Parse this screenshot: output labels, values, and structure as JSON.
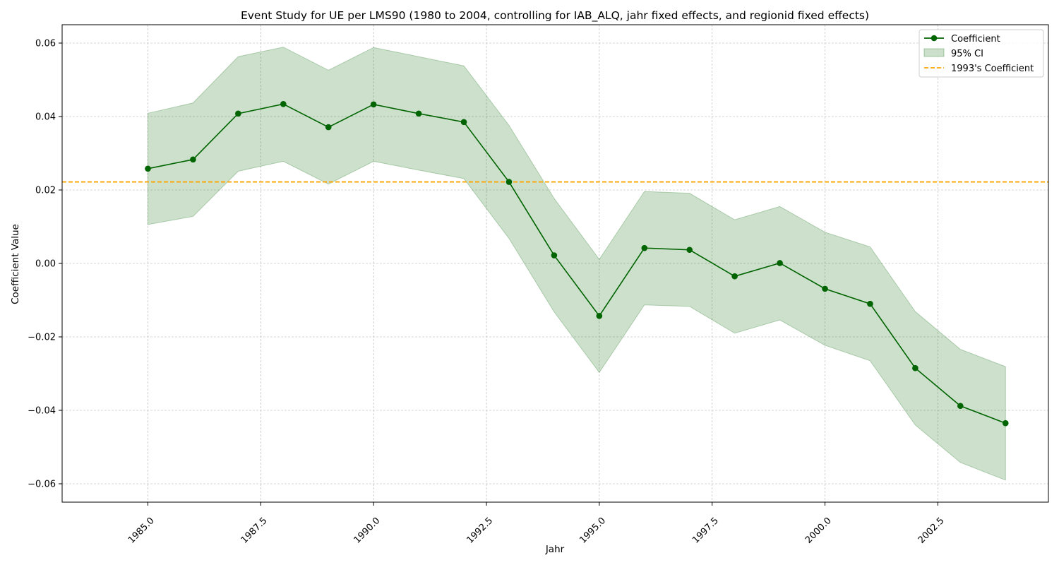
{
  "chart_data": {
    "type": "line",
    "title": "Event Study for UE per LMS90 (1980 to 2004, controlling for IAB_ALQ, jahr fixed effects, and regionid fixed effects)",
    "xlabel": "Jahr",
    "ylabel": "Coefficient Value",
    "xlim": [
      1983.1,
      2004.95
    ],
    "ylim": [
      -0.065,
      0.065
    ],
    "xticks": [
      1985.0,
      1987.5,
      1990.0,
      1992.5,
      1995.0,
      1997.5,
      2000.0,
      2002.5
    ],
    "xtick_labels": [
      "1985.0",
      "1987.5",
      "1990.0",
      "1992.5",
      "1995.0",
      "1997.5",
      "2000.0",
      "2002.5"
    ],
    "yticks": [
      -0.06,
      -0.04,
      -0.02,
      0.0,
      0.02,
      0.04,
      0.06
    ],
    "ytick_labels": [
      "−0.06",
      "−0.04",
      "−0.02",
      "0.00",
      "0.02",
      "0.04",
      "0.06"
    ],
    "grid": true,
    "legend_position": "top-right",
    "x": [
      1985,
      1986,
      1987,
      1988,
      1989,
      1990,
      1991,
      1992,
      1993,
      1994,
      1995,
      1996,
      1997,
      1998,
      1999,
      2000,
      2001,
      2002,
      2003,
      2004
    ],
    "series": [
      {
        "name": "Coefficient",
        "color": "#006400",
        "values": [
          0.0258,
          0.0283,
          0.0408,
          0.0434,
          0.0371,
          0.0433,
          0.0408,
          0.0385,
          0.0222,
          0.0022,
          -0.0143,
          0.0042,
          0.0037,
          -0.0035,
          0.0001,
          -0.0069,
          -0.011,
          -0.0285,
          -0.0388,
          -0.0435
        ]
      }
    ],
    "ci": {
      "name": "95% CI",
      "color": "#006400",
      "lower": [
        0.0106,
        0.0128,
        0.0251,
        0.0278,
        0.0216,
        0.0278,
        0.0254,
        0.0231,
        0.0068,
        -0.0132,
        -0.0297,
        -0.0113,
        -0.0117,
        -0.019,
        -0.0154,
        -0.0223,
        -0.0265,
        -0.044,
        -0.0542,
        -0.059
      ],
      "upper": [
        0.0409,
        0.0437,
        0.0563,
        0.0589,
        0.0526,
        0.0588,
        0.0563,
        0.0538,
        0.0376,
        0.0177,
        0.0011,
        0.0196,
        0.0191,
        0.0119,
        0.0155,
        0.0085,
        0.0045,
        -0.0131,
        -0.0234,
        -0.0281
      ]
    },
    "reference_line": {
      "name": "1993's Coefficient",
      "value": 0.0222,
      "color": "#FFA500"
    }
  }
}
